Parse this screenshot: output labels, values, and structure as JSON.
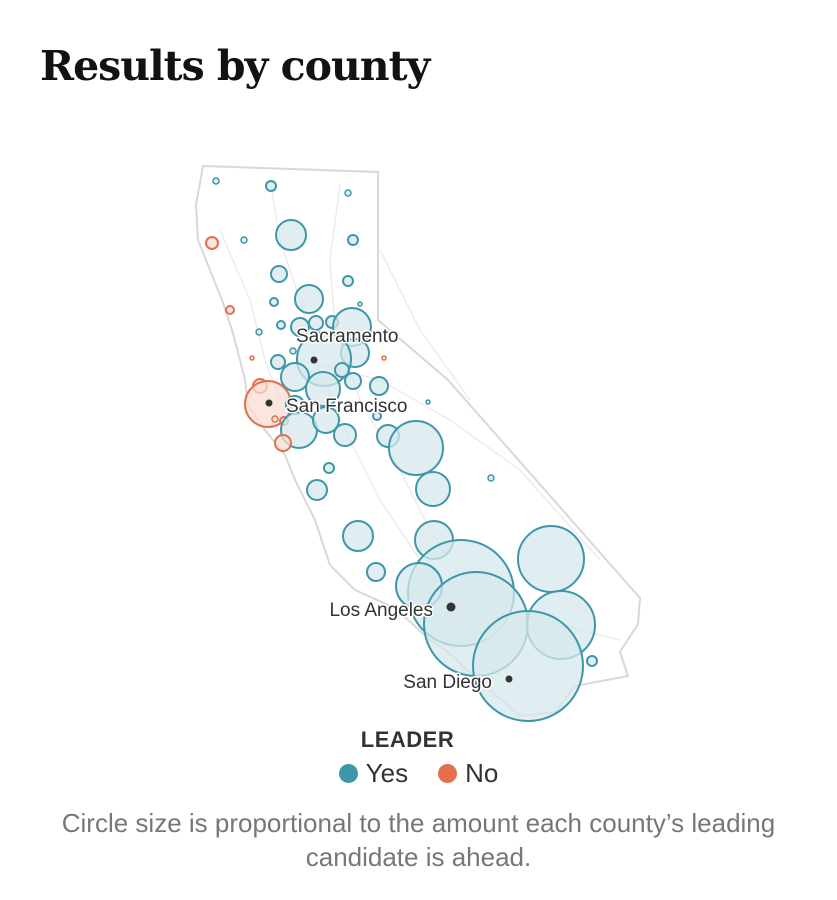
{
  "title": "Results by county",
  "legend": {
    "title": "LEADER",
    "items": [
      {
        "label": "Yes",
        "color": "#3d97a8"
      },
      {
        "label": "No",
        "color": "#e3704a"
      }
    ]
  },
  "caption": "Circle size is proportional to the amount each county’s leading candidate is ahead.",
  "cities": [
    {
      "name": "Sacramento"
    },
    {
      "name": "San Francisco"
    },
    {
      "name": "Los Angeles"
    },
    {
      "name": "San Diego"
    }
  ],
  "colors": {
    "yes_stroke": "#3d97a8",
    "yes_fill": "#d6e8ec",
    "no_stroke": "#e3704a",
    "no_fill": "#f6ddd4",
    "state_outline": "#d8d8d8"
  }
}
